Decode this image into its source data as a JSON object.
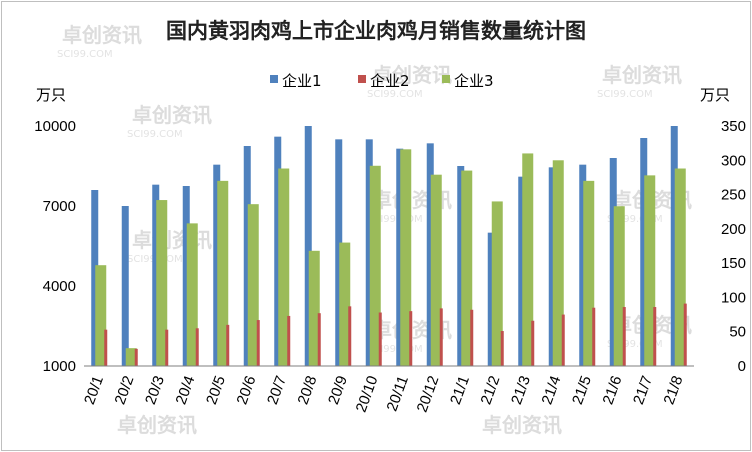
{
  "chart_data": {
    "type": "bar",
    "title": "国内黄羽肉鸡上市企业肉鸡月销售数量统计图",
    "left_unit": "万只",
    "right_unit": "万只",
    "categories": [
      "20/1",
      "20/2",
      "20/3",
      "20/4",
      "20/5",
      "20/6",
      "20/7",
      "20/8",
      "20/9",
      "20/10",
      "20/11",
      "20/12",
      "21/1",
      "21/2",
      "21/3",
      "21/4",
      "21/5",
      "21/6",
      "21/7",
      "21/8"
    ],
    "y_left": {
      "ylim": [
        1000,
        10000
      ],
      "ticks": [
        "1000",
        "4000",
        "7000",
        "10000"
      ]
    },
    "y_right": {
      "ylim": [
        0,
        350
      ],
      "ticks": [
        "0",
        "50",
        "100",
        "150",
        "200",
        "250",
        "300",
        "350"
      ]
    },
    "series": [
      {
        "name": "企业1",
        "color": "#4f81bd",
        "axis": "left",
        "values": [
          7600,
          7000,
          7800,
          7750,
          8550,
          9250,
          9600,
          10000,
          9500,
          9500,
          9150,
          9350,
          8500,
          6000,
          8100,
          8450,
          8550,
          8800,
          9550,
          10000
        ]
      },
      {
        "name": "企业2",
        "color": "#c0504d",
        "axis": "right",
        "values": [
          53,
          25,
          53,
          55,
          60,
          67,
          73,
          77,
          87,
          78,
          80,
          84,
          82,
          51,
          66,
          75,
          85,
          86,
          86,
          91
        ]
      },
      {
        "name": "企业3",
        "color": "#9bbb59",
        "axis": "right",
        "values": [
          147,
          26,
          242,
          208,
          270,
          236,
          288,
          168,
          180,
          292,
          316,
          279,
          285,
          240,
          310,
          300,
          270,
          233,
          278,
          288
        ]
      }
    ],
    "legend_position": "top",
    "grid": false
  }
}
